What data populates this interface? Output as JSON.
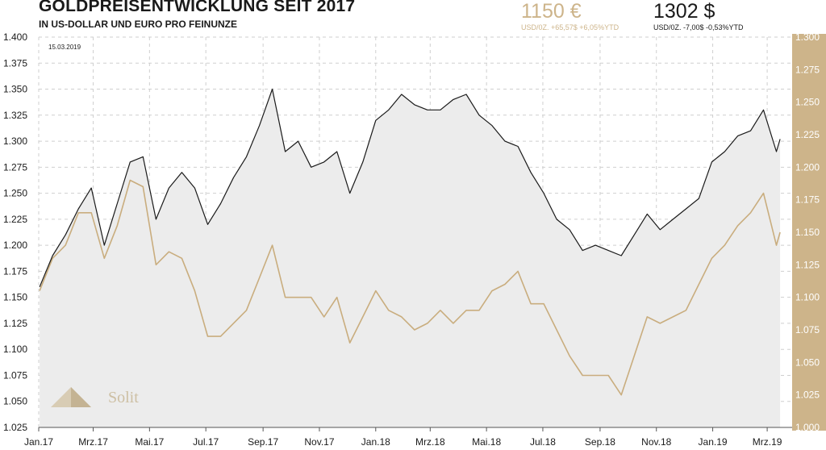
{
  "header": {
    "title": "GOLDPREISENTWICKLUNG SEIT 2017",
    "subtitle": "IN US-DOLLAR UND EURO PRO FEINUNZE",
    "eur_price": "1150 €",
    "eur_change": "USD/0Z.  +65,57$  +6,05%YTD",
    "usd_price": "1302 $",
    "usd_change": "USD/0Z.  -7,00$  -0,53%YTD"
  },
  "colors": {
    "usd_line": "#1a1a1a",
    "eur_line": "#c9ad7e",
    "area_fill": "#ececec",
    "grid": "#cfcfcf",
    "right_axis_bg": "#cdb48a"
  },
  "logo": {
    "text": "Solit"
  },
  "chart_data": {
    "type": "line",
    "date_label": "15.03.2019",
    "x": [
      "2017-01-02",
      "2017-01-16",
      "2017-01-30",
      "2017-02-13",
      "2017-02-27",
      "2017-03-13",
      "2017-03-27",
      "2017-04-10",
      "2017-04-24",
      "2017-05-08",
      "2017-05-22",
      "2017-06-05",
      "2017-06-19",
      "2017-07-03",
      "2017-07-17",
      "2017-07-31",
      "2017-08-14",
      "2017-08-28",
      "2017-09-11",
      "2017-09-25",
      "2017-10-09",
      "2017-10-23",
      "2017-11-06",
      "2017-11-20",
      "2017-12-04",
      "2017-12-18",
      "2018-01-01",
      "2018-01-15",
      "2018-01-29",
      "2018-02-12",
      "2018-02-26",
      "2018-03-12",
      "2018-03-26",
      "2018-04-09",
      "2018-04-23",
      "2018-05-07",
      "2018-05-21",
      "2018-06-04",
      "2018-06-18",
      "2018-07-02",
      "2018-07-16",
      "2018-07-30",
      "2018-08-13",
      "2018-08-27",
      "2018-09-10",
      "2018-09-24",
      "2018-10-08",
      "2018-10-22",
      "2018-11-05",
      "2018-11-19",
      "2018-12-03",
      "2018-12-17",
      "2018-12-31",
      "2019-01-14",
      "2019-01-28",
      "2019-02-11",
      "2019-02-25",
      "2019-03-11",
      "2019-03-15"
    ],
    "series": [
      {
        "key": "usd",
        "axis": "left",
        "values": [
          1160,
          1190,
          1210,
          1235,
          1255,
          1200,
          1240,
          1280,
          1285,
          1225,
          1255,
          1270,
          1255,
          1220,
          1240,
          1265,
          1285,
          1315,
          1350,
          1290,
          1300,
          1275,
          1280,
          1290,
          1250,
          1280,
          1320,
          1330,
          1345,
          1335,
          1330,
          1330,
          1340,
          1345,
          1325,
          1315,
          1300,
          1295,
          1270,
          1250,
          1225,
          1215,
          1195,
          1200,
          1195,
          1190,
          1210,
          1230,
          1215,
          1225,
          1235,
          1245,
          1280,
          1290,
          1305,
          1310,
          1330,
          1290,
          1302
        ]
      },
      {
        "key": "eur",
        "axis": "right",
        "values": [
          1105,
          1130,
          1140,
          1165,
          1165,
          1130,
          1155,
          1190,
          1185,
          1125,
          1135,
          1130,
          1105,
          1070,
          1070,
          1080,
          1090,
          1115,
          1140,
          1100,
          1100,
          1100,
          1085,
          1100,
          1065,
          1085,
          1105,
          1090,
          1085,
          1075,
          1080,
          1090,
          1080,
          1090,
          1090,
          1105,
          1110,
          1120,
          1095,
          1095,
          1075,
          1055,
          1040,
          1040,
          1040,
          1025,
          1055,
          1085,
          1080,
          1085,
          1090,
          1110,
          1130,
          1140,
          1155,
          1165,
          1180,
          1140,
          1150
        ]
      }
    ],
    "left_axis": {
      "min": 1.025,
      "max": 1.4,
      "ticks": [
        "1.025",
        "1.050",
        "1.075",
        "1.100",
        "1.125",
        "1.150",
        "1.175",
        "1.200",
        "1.225",
        "1.250",
        "1.275",
        "1.300",
        "1.325",
        "1.350",
        "1.375",
        "1.400"
      ]
    },
    "right_axis": {
      "min": 1000,
      "max": 1300,
      "ticks": [
        "1.000",
        "1.025",
        "1.050",
        "1.075",
        "1.100",
        "1.125",
        "1.150",
        "1.175",
        "1.200",
        "1.225",
        "1.250",
        "1.275",
        "1.300"
      ]
    },
    "x_ticks": [
      {
        "date": "2017-01-01",
        "label": "Jan.17"
      },
      {
        "date": "2017-03-01",
        "label": "Mrz.17"
      },
      {
        "date": "2017-05-01",
        "label": "Mai.17"
      },
      {
        "date": "2017-07-01",
        "label": "Jul.17"
      },
      {
        "date": "2017-09-01",
        "label": "Sep.17"
      },
      {
        "date": "2017-11-01",
        "label": "Nov.17"
      },
      {
        "date": "2018-01-01",
        "label": "Jan.18"
      },
      {
        "date": "2018-03-01",
        "label": "Mrz.18"
      },
      {
        "date": "2018-05-01",
        "label": "Mai.18"
      },
      {
        "date": "2018-07-01",
        "label": "Jul.18"
      },
      {
        "date": "2018-09-01",
        "label": "Sep.18"
      },
      {
        "date": "2018-11-01",
        "label": "Nov.18"
      },
      {
        "date": "2019-01-01",
        "label": "Jan.19"
      },
      {
        "date": "2019-03-01",
        "label": "Mrz.19"
      }
    ],
    "grid": true
  }
}
